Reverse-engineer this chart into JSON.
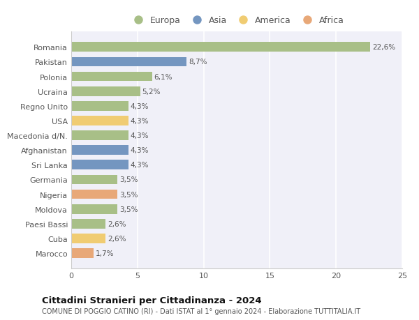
{
  "countries": [
    "Romania",
    "Pakistan",
    "Polonia",
    "Ucraina",
    "Regno Unito",
    "USA",
    "Macedonia d/N.",
    "Afghanistan",
    "Sri Lanka",
    "Germania",
    "Nigeria",
    "Moldova",
    "Paesi Bassi",
    "Cuba",
    "Marocco"
  ],
  "values": [
    22.6,
    8.7,
    6.1,
    5.2,
    4.3,
    4.3,
    4.3,
    4.3,
    4.3,
    3.5,
    3.5,
    3.5,
    2.6,
    2.6,
    1.7
  ],
  "labels": [
    "22,6%",
    "8,7%",
    "6,1%",
    "5,2%",
    "4,3%",
    "4,3%",
    "4,3%",
    "4,3%",
    "4,3%",
    "3,5%",
    "3,5%",
    "3,5%",
    "2,6%",
    "2,6%",
    "1,7%"
  ],
  "continent": [
    "Europa",
    "Asia",
    "Europa",
    "Europa",
    "Europa",
    "America",
    "Europa",
    "Asia",
    "Asia",
    "Europa",
    "Africa",
    "Europa",
    "Europa",
    "America",
    "Africa"
  ],
  "colors": {
    "Europa": "#a8bf87",
    "Asia": "#7496c0",
    "America": "#f0cc72",
    "Africa": "#e8a878"
  },
  "legend_order": [
    "Europa",
    "Asia",
    "America",
    "Africa"
  ],
  "title": "Cittadini Stranieri per Cittadinanza - 2024",
  "subtitle": "COMUNE DI POGGIO CATINO (RI) - Dati ISTAT al 1° gennaio 2024 - Elaborazione TUTTITALIA.IT",
  "xlim": [
    0,
    25
  ],
  "xticks": [
    0,
    5,
    10,
    15,
    20,
    25
  ],
  "background_color": "#ffffff",
  "plot_bg_color": "#f0f0f8",
  "grid_color": "#ffffff"
}
